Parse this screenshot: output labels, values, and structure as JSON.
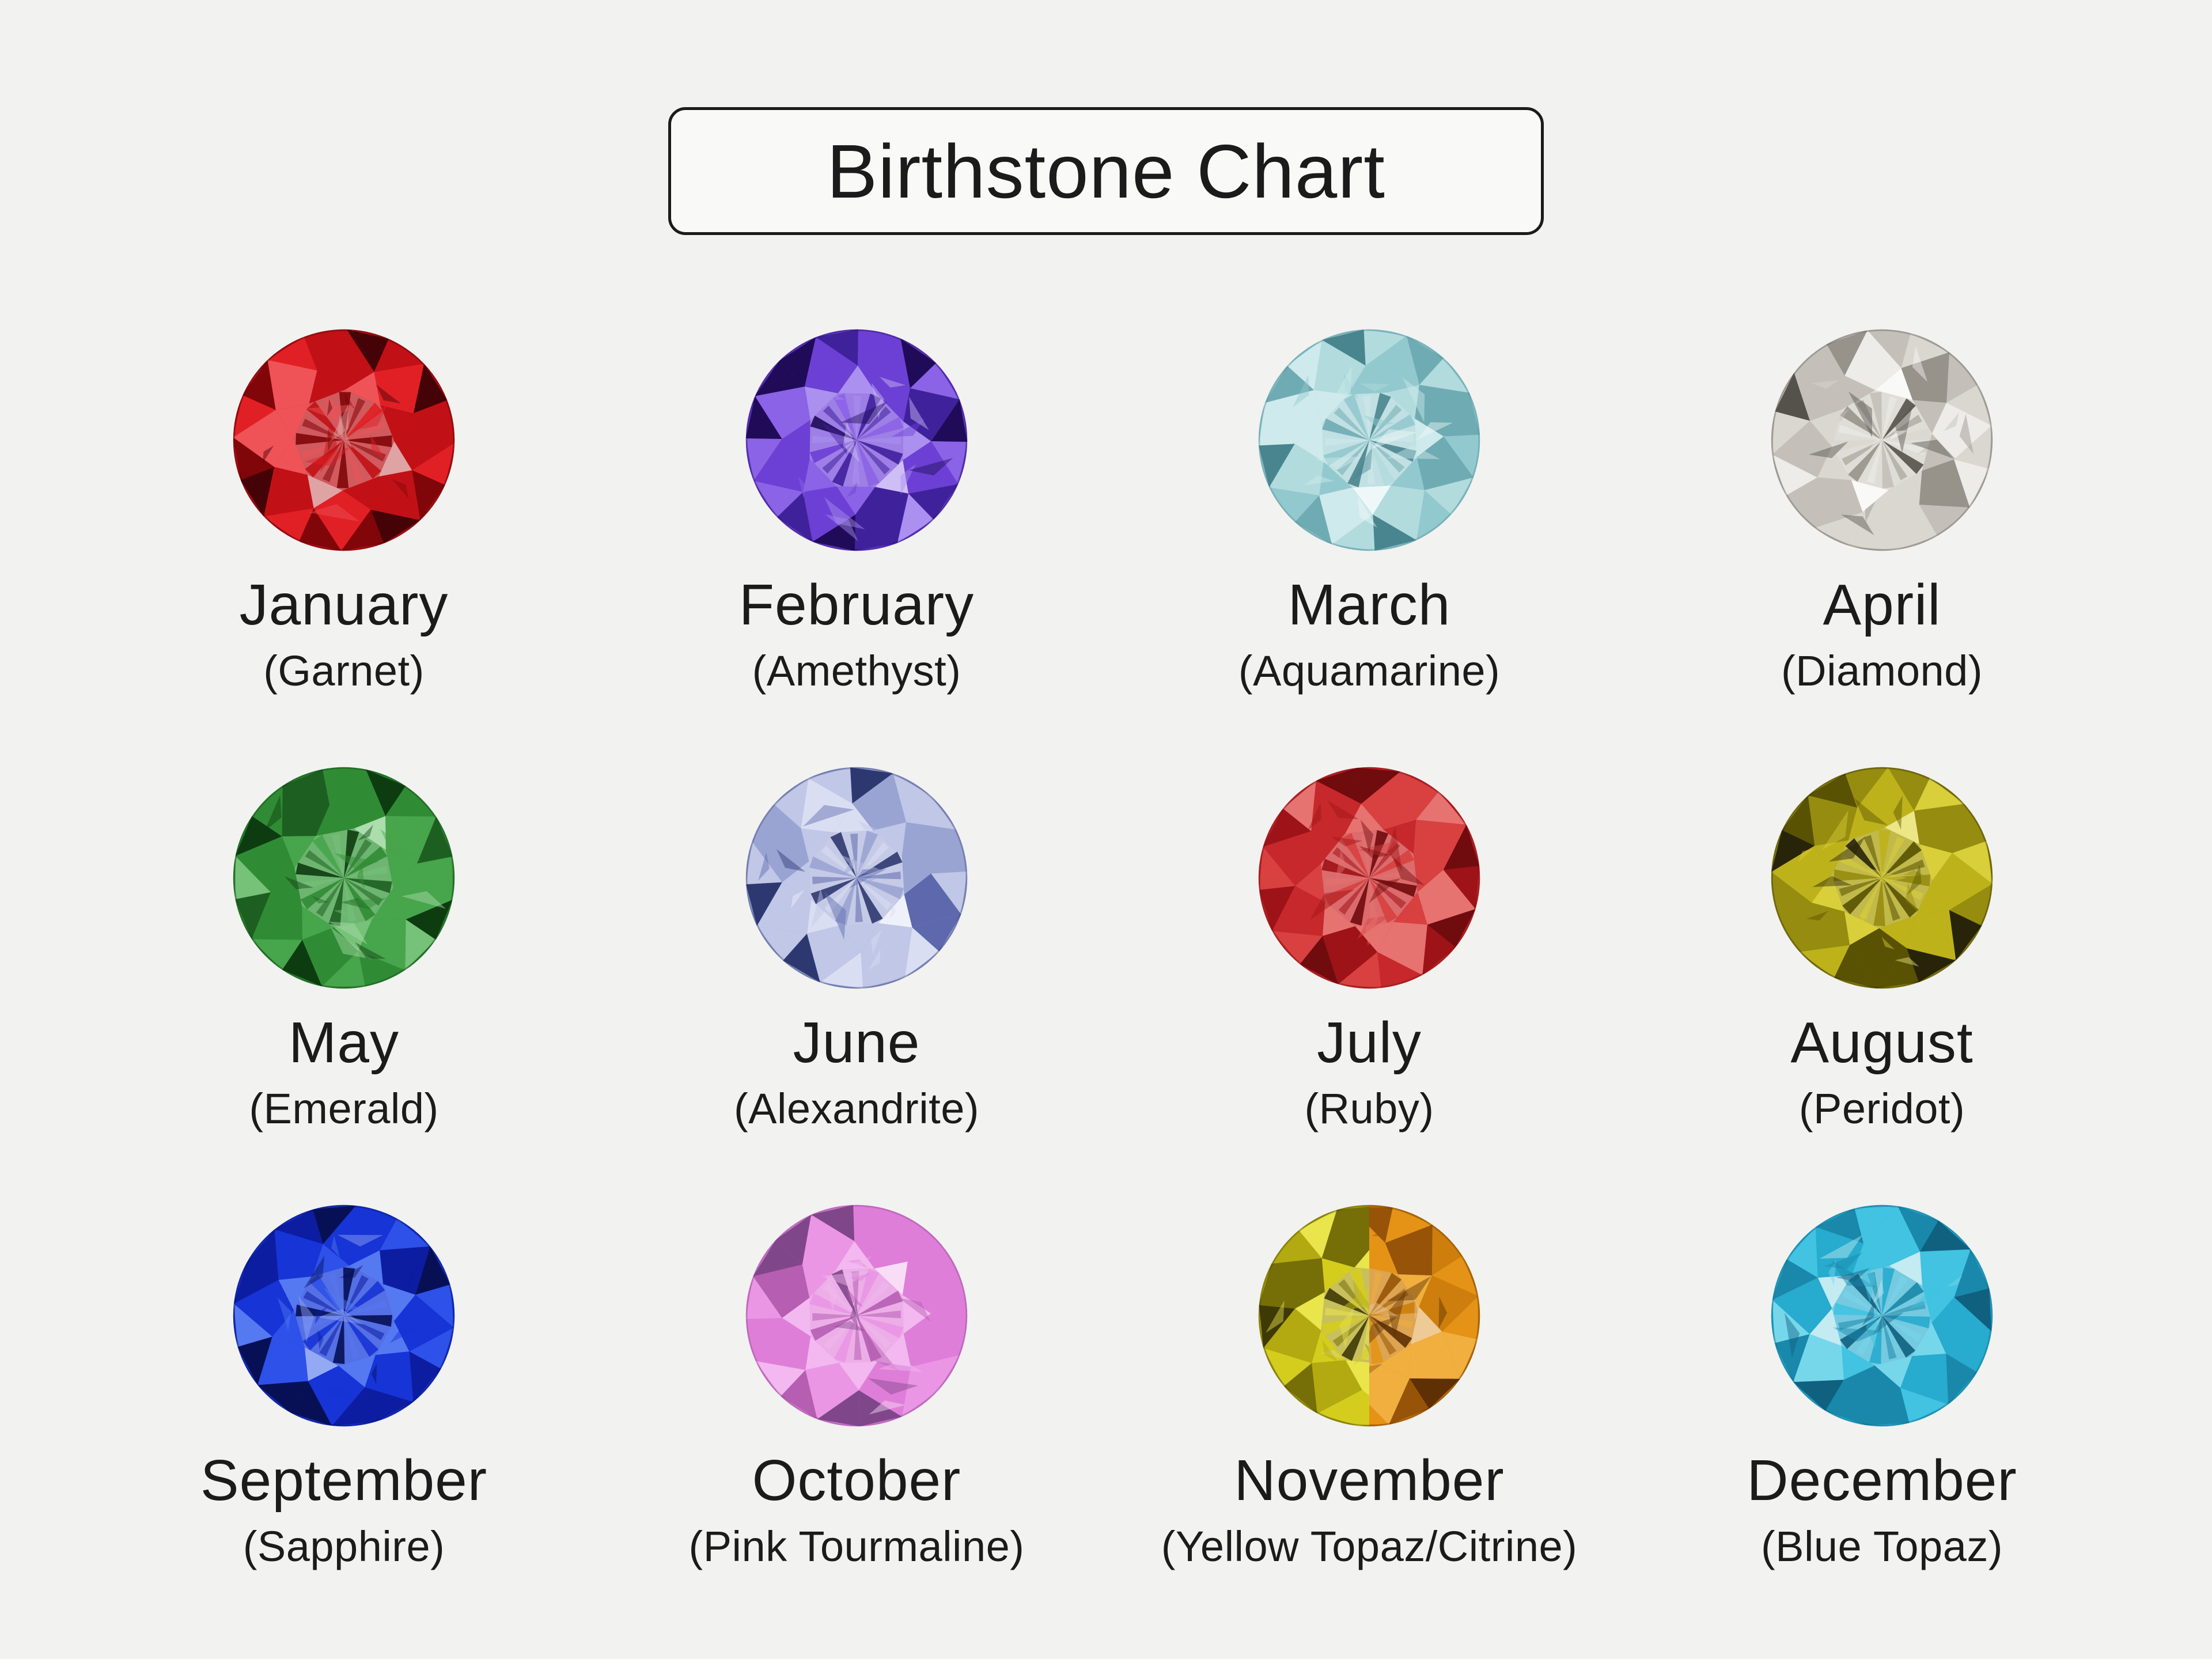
{
  "page": {
    "background": "#f2f2f1",
    "text_color": "#1b1b1b"
  },
  "title": {
    "text": "Birthstone Chart",
    "box_border_color": "#1b1b1b",
    "box_background": "#f9f9f8"
  },
  "gems": [
    {
      "month": "January",
      "stone": "Garnet",
      "stone_label": "(Garnet)",
      "colors": {
        "dark": "#450207",
        "deep": "#800609",
        "base": "#c11116",
        "mid": "#e12025",
        "light": "#ef5357",
        "pale": "#dfa3a4"
      }
    },
    {
      "month": "February",
      "stone": "Amethyst",
      "stone_label": "(Amethyst)",
      "colors": {
        "dark": "#200b58",
        "deep": "#40219c",
        "base": "#6c40d4",
        "mid": "#8b63e6",
        "light": "#ab90f0",
        "pale": "#cfbef6"
      }
    },
    {
      "month": "March",
      "stone": "Aquamarine",
      "stone_label": "(Aquamarine)",
      "colors": {
        "dark": "#49858e",
        "deep": "#6fabb2",
        "base": "#92c9ce",
        "mid": "#b2dbde",
        "light": "#cfeaec",
        "pale": "#eff8f8"
      }
    },
    {
      "month": "April",
      "stone": "Diamond",
      "stone_label": "(Diamond)",
      "colors": {
        "dark": "#55524c",
        "deep": "#97938b",
        "base": "#c4c0b9",
        "mid": "#dad7d1",
        "light": "#edece8",
        "pale": "#f9f9f7"
      }
    },
    {
      "month": "May",
      "stone": "Emerald",
      "stone_label": "(Emerald)",
      "colors": {
        "dark": "#0e3c11",
        "deep": "#1d5f21",
        "base": "#308c34",
        "mid": "#47a54b",
        "light": "#76c279",
        "pale": "#abddad"
      }
    },
    {
      "month": "June",
      "stone": "Alexandrite",
      "stone_label": "(Alexandrite)",
      "colors": {
        "dark": "#2e3870",
        "deep": "#5d69ac",
        "base": "#9aa4d3",
        "mid": "#c0c7e7",
        "light": "#dadef2",
        "pale": "#eff1fa"
      }
    },
    {
      "month": "July",
      "stone": "Ruby",
      "stone_label": "(Ruby)",
      "colors": {
        "dark": "#700b0e",
        "deep": "#9e1317",
        "base": "#c6282c",
        "mid": "#d84140",
        "light": "#e67370",
        "pale": "#efaeab"
      }
    },
    {
      "month": "August",
      "stone": "Peridot",
      "stone_label": "(Peridot)",
      "colors": {
        "dark": "#282409",
        "deep": "#585202",
        "base": "#968c0f",
        "mid": "#beb21b",
        "light": "#d9cf3a",
        "pale": "#ece686"
      }
    },
    {
      "month": "September",
      "stone": "Sapphire",
      "stone_label": "(Sapphire)",
      "colors": {
        "dark": "#071055",
        "deep": "#0c1da2",
        "base": "#1734d6",
        "mid": "#2d51e9",
        "light": "#5579f0",
        "pale": "#94a9f4"
      }
    },
    {
      "month": "October",
      "stone": "Pink Tourmaline",
      "stone_label": "(Pink Tourmaline)",
      "colors": {
        "dark": "#80468a",
        "deep": "#b65eb2",
        "base": "#df7ed9",
        "mid": "#ea96e5",
        "light": "#f2b8ef",
        "pale": "#f9ddf6"
      }
    },
    {
      "month": "November",
      "stone": "Yellow Topaz/Citrine",
      "stone_label": "(Yellow Topaz/Citrine)",
      "split": true,
      "colors": {
        "dark": "#3e3a05",
        "deep": "#766e07",
        "base": "#b2aa10",
        "mid": "#d5cd1e",
        "light": "#e9e54b",
        "pale": "#ded5a8"
      },
      "colors_right": {
        "dark": "#5e3003",
        "deep": "#975408",
        "base": "#cd7e0d",
        "mid": "#e49316",
        "light": "#f0af3e",
        "pale": "#edca96"
      }
    },
    {
      "month": "December",
      "stone": "Blue Topaz",
      "stone_label": "(Blue Topaz)",
      "colors": {
        "dark": "#106080",
        "deep": "#1988aa",
        "base": "#27abce",
        "mid": "#41c3e1",
        "light": "#76d7eb",
        "pale": "#c4eaf2"
      }
    }
  ]
}
